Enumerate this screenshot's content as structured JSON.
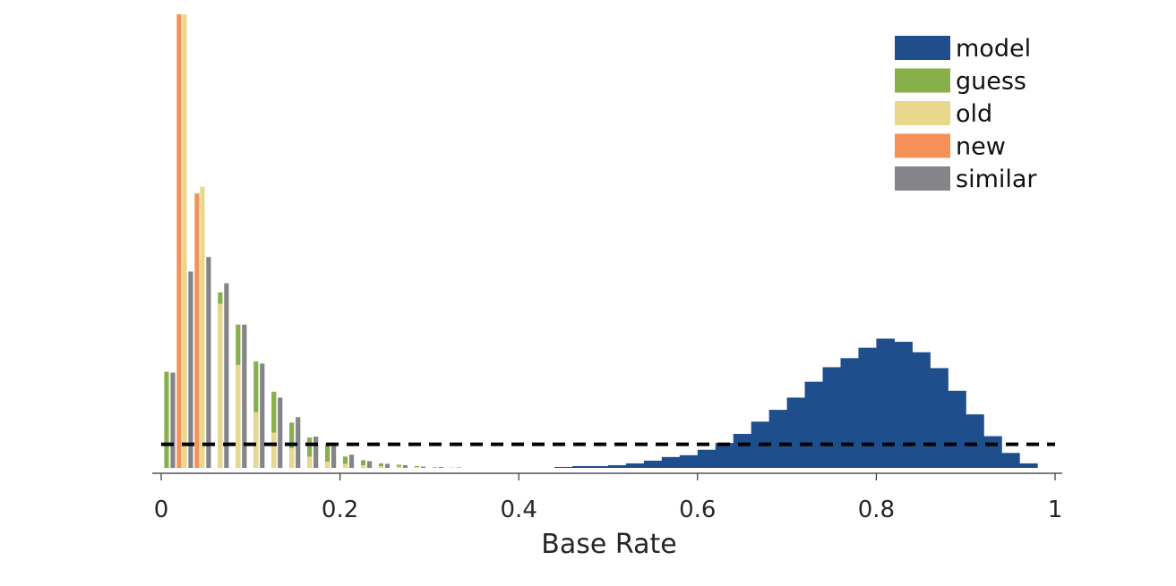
{
  "chart_data": {
    "type": "bar",
    "title": "",
    "xlabel": "Base Rate",
    "ylabel": "",
    "xlim": [
      0,
      1
    ],
    "ylim": [
      0,
      1.0
    ],
    "grid": false,
    "legend_position": "top-right",
    "x_ticks": [
      "0",
      "0.2",
      "0.4",
      "0.6",
      "0.8",
      "1"
    ],
    "x_tick_values": [
      0,
      0.2,
      0.4,
      0.6,
      0.8,
      1
    ],
    "threshold": 0.052,
    "series": [
      {
        "name": "model",
        "color": "#1f4e8c",
        "bin_width": 0.02,
        "bins": [
          0.44,
          0.46,
          0.48,
          0.5,
          0.52,
          0.54,
          0.56,
          0.58,
          0.6,
          0.62,
          0.64,
          0.66,
          0.68,
          0.7,
          0.72,
          0.74,
          0.76,
          0.78,
          0.8,
          0.82,
          0.84,
          0.86,
          0.88,
          0.9,
          0.92,
          0.94,
          0.96
        ],
        "values": [
          0.002,
          0.004,
          0.004,
          0.006,
          0.01,
          0.016,
          0.024,
          0.028,
          0.04,
          0.055,
          0.075,
          0.102,
          0.128,
          0.155,
          0.19,
          0.222,
          0.242,
          0.265,
          0.285,
          0.278,
          0.255,
          0.22,
          0.17,
          0.118,
          0.07,
          0.033,
          0.01
        ]
      },
      {
        "name": "guess",
        "color": "#87b04a",
        "offset": 0.006,
        "bins": [
          0.01,
          0.03,
          0.05,
          0.07,
          0.09,
          0.11,
          0.13,
          0.15,
          0.17,
          0.19,
          0.21,
          0.23,
          0.25,
          0.27,
          0.29,
          0.31,
          0.33
        ],
        "values": [
          0.212,
          0.45,
          0.46,
          0.387,
          0.316,
          0.235,
          0.168,
          0.1,
          0.067,
          0.052,
          0.025,
          0.017,
          0.01,
          0.007,
          0.004,
          0.002,
          0.001
        ]
      },
      {
        "name": "old",
        "color": "#e9d78d",
        "offset": 0.026,
        "bins": [
          0.01,
          0.03,
          0.05,
          0.07,
          0.09,
          0.11,
          0.13,
          0.15,
          0.17,
          0.19,
          0.21,
          0.23,
          0.25,
          0.27,
          0.29,
          0.31
        ],
        "values": [
          1.0,
          0.62,
          0.362,
          0.227,
          0.123,
          0.078,
          0.044,
          0.025,
          0.014,
          0.009,
          0.006,
          0.004,
          0.003,
          0.002,
          0.001,
          0.001
        ]
      },
      {
        "name": "new",
        "color": "#f59157",
        "offset": 0.02,
        "bins": [
          0.01,
          0.03
        ],
        "values": [
          1.0,
          0.605
        ]
      },
      {
        "name": "similar",
        "color": "#858589",
        "offset": 0.013,
        "bins": [
          0.01,
          0.03,
          0.05,
          0.07,
          0.09,
          0.11,
          0.13,
          0.15,
          0.17,
          0.19,
          0.21,
          0.23,
          0.25,
          0.27,
          0.29,
          0.31,
          0.33
        ],
        "values": [
          0.21,
          0.433,
          0.465,
          0.407,
          0.316,
          0.23,
          0.155,
          0.112,
          0.069,
          0.048,
          0.029,
          0.015,
          0.009,
          0.006,
          0.003,
          0.002,
          0.001
        ]
      }
    ]
  }
}
